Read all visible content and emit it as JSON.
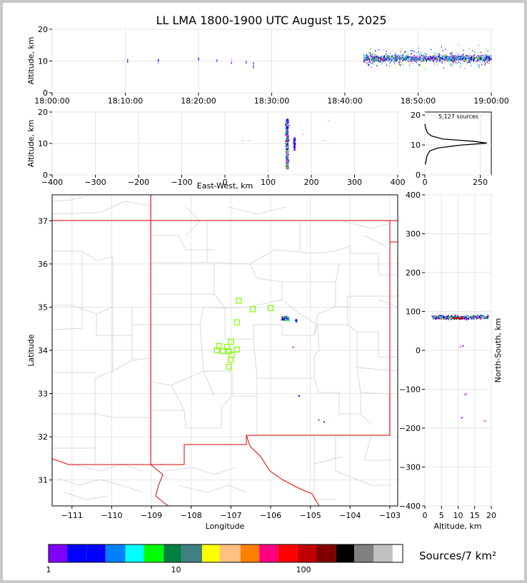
{
  "title": "LL LMA 1800-1900 UTC August 15, 2025",
  "colors": {
    "grid": "#e6e6e6",
    "map_boundary": "#cfcfcf",
    "state_line": "#e00000",
    "stations": "#7cfc00",
    "colorbar": [
      "#ff55ff",
      "#8000ff",
      "#0000ff",
      "#0000ff",
      "#0080ff",
      "#00ffff",
      "#00ff00",
      "#008040",
      "#408080",
      "#ffff00",
      "#ffc080",
      "#ff8000",
      "#ff0080",
      "#ff0000",
      "#c00000",
      "#800000",
      "#000000",
      "#808080",
      "#c0c0c0",
      "#ffffff"
    ]
  },
  "chart_data": [
    {
      "type": "scatter",
      "panel": "altitude-time",
      "ylabel": "Altitude, km",
      "x_ticks": [
        "18:00:00",
        "18:10:00",
        "18:20:00",
        "18:30:00",
        "18:40:00",
        "18:50:00",
        "19:00:00"
      ],
      "y_ticks": [
        "0",
        "10",
        "20"
      ],
      "ylim": [
        0,
        20
      ],
      "grid": true,
      "clusters": [
        {
          "t_min": 10.3,
          "alt": 10
        },
        {
          "t_min": 14.5,
          "alt": 10
        },
        {
          "t_min": 20.0,
          "alt": 11
        },
        {
          "t_min": 22.5,
          "alt": 10
        },
        {
          "t_min": 24.5,
          "alt": 10
        },
        {
          "t_min": 26.5,
          "alt": 10
        },
        {
          "t_min": 27.5,
          "alt": 9
        }
      ],
      "dense_range_min": [
        42.5,
        60
      ],
      "dense_alt_km": 11
    },
    {
      "type": "scatter",
      "panel": "east-west-altitude",
      "xlabel": "East-West, km",
      "ylabel": "Altitude, km",
      "x_ticks": [
        "−400",
        "−300",
        "−200",
        "−100",
        "0",
        "100",
        "200",
        "300",
        "400"
      ],
      "y_ticks": [
        "0",
        "10",
        "20"
      ],
      "xlim": [
        -400,
        400
      ],
      "ylim": [
        0,
        20
      ],
      "grid": true,
      "main_column": {
        "x_km": 143,
        "alt_range": [
          2,
          18
        ]
      },
      "side_column": {
        "x_km": 160,
        "alt_range": [
          8,
          12
        ]
      }
    },
    {
      "type": "line",
      "panel": "altitude-histogram",
      "annotation": "5,127 sources",
      "x_ticks": [
        "0",
        "250"
      ],
      "y_ticks": [
        "0",
        "10",
        "20"
      ],
      "xlim": [
        0,
        300
      ],
      "ylim": [
        0,
        21
      ],
      "profile": [
        {
          "alt": 3.5,
          "n": 2
        },
        {
          "alt": 5,
          "n": 6
        },
        {
          "alt": 6.5,
          "n": 10
        },
        {
          "alt": 8,
          "n": 22
        },
        {
          "alt": 9,
          "n": 60
        },
        {
          "alt": 10,
          "n": 170
        },
        {
          "alt": 10.6,
          "n": 280
        },
        {
          "alt": 11.2,
          "n": 220
        },
        {
          "alt": 12,
          "n": 80
        },
        {
          "alt": 13,
          "n": 30
        },
        {
          "alt": 14,
          "n": 12
        },
        {
          "alt": 15.5,
          "n": 4
        },
        {
          "alt": 17,
          "n": 0
        }
      ]
    },
    {
      "type": "scatter",
      "panel": "plan-view",
      "xlabel": "Longitude",
      "ylabel": "Latitude",
      "x_ticks": [
        "−111",
        "−110",
        "−109",
        "−108",
        "−107",
        "−106",
        "−105",
        "−104",
        "−103"
      ],
      "y_ticks": [
        "31",
        "32",
        "33",
        "34",
        "35",
        "36",
        "37"
      ],
      "xlim": [
        -111.5,
        -102.8
      ],
      "ylim": [
        30.4,
        37.6
      ],
      "grid": true,
      "stations": [
        {
          "lon": -106.8,
          "lat": 35.15
        },
        {
          "lon": -106.45,
          "lat": 34.95
        },
        {
          "lon": -106.0,
          "lat": 34.98
        },
        {
          "lon": -106.85,
          "lat": 34.65
        },
        {
          "lon": -107.0,
          "lat": 34.2
        },
        {
          "lon": -107.1,
          "lat": 34.08
        },
        {
          "lon": -107.3,
          "lat": 34.1
        },
        {
          "lon": -107.35,
          "lat": 34.0
        },
        {
          "lon": -107.2,
          "lat": 33.98
        },
        {
          "lon": -106.98,
          "lat": 33.9
        },
        {
          "lon": -106.85,
          "lat": 34.02
        },
        {
          "lon": -107.05,
          "lat": 33.98
        },
        {
          "lon": -107.0,
          "lat": 33.78
        },
        {
          "lon": -107.05,
          "lat": 33.62
        }
      ],
      "source_cluster": {
        "lon": -105.65,
        "lat": 34.75
      },
      "minor_sources": [
        {
          "lon": -105.45,
          "lat": 34.08
        },
        {
          "lon": -105.3,
          "lat": 32.96
        },
        {
          "lon": -104.8,
          "lat": 32.4
        },
        {
          "lon": -104.65,
          "lat": 32.35
        }
      ]
    },
    {
      "type": "scatter",
      "panel": "altitude-north-south",
      "xlabel": "Altitude, km",
      "ylabel": "North-South, km",
      "x_ticks": [
        "0",
        "5",
        "10",
        "15",
        "20"
      ],
      "y_ticks": [
        "−400",
        "−300",
        "−200",
        "−100",
        "0",
        "100",
        "200",
        "300",
        "400"
      ],
      "xlim": [
        0,
        20
      ],
      "ylim": [
        -400,
        400
      ],
      "grid": true,
      "band": {
        "ns_km": 86,
        "alt_range": [
          2,
          19
        ]
      },
      "minor": [
        {
          "alt": 11,
          "ns": 12
        },
        {
          "alt": 12,
          "ns": -112
        },
        {
          "alt": 11,
          "ns": -172
        },
        {
          "alt": 18,
          "ns": -180
        }
      ]
    },
    {
      "type": "colorbar",
      "panel": "colorbar",
      "label": "Sources/7 km²",
      "tick_labels": [
        "1",
        "10",
        "100"
      ]
    }
  ]
}
